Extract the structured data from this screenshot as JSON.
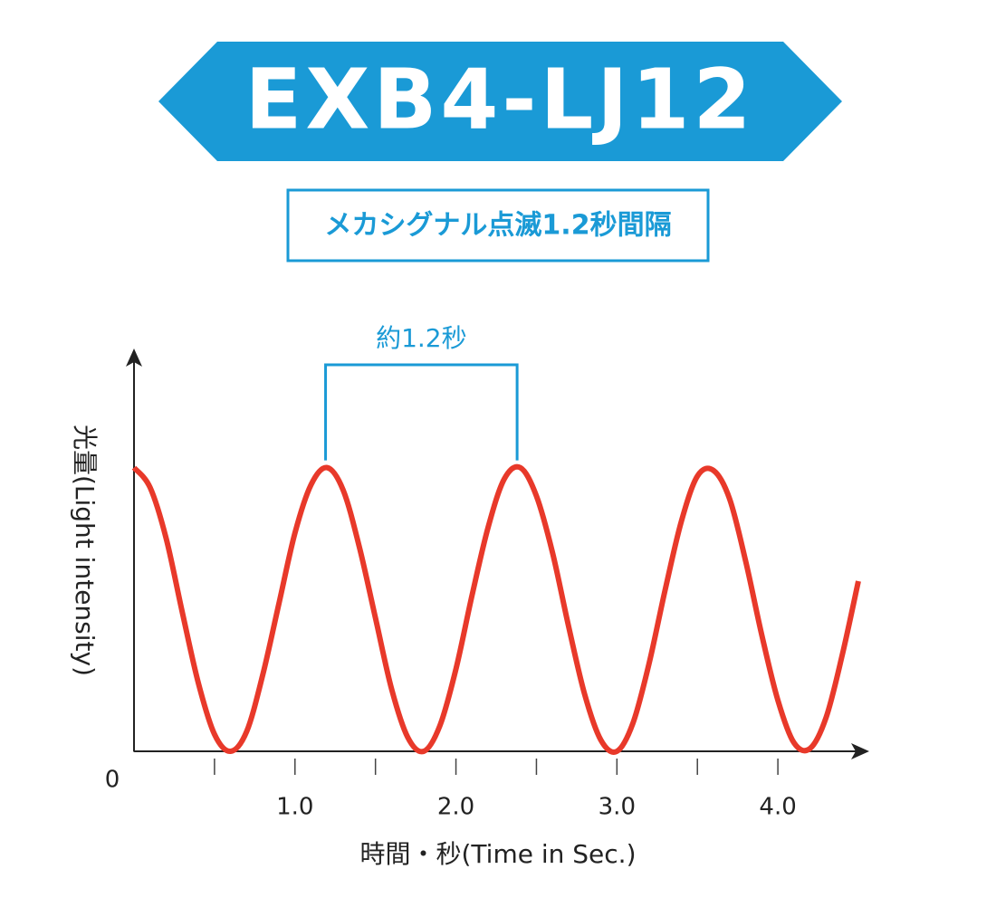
{
  "chart_data": {
    "type": "line",
    "title": "EXB4-LJ12",
    "subtitle": "メカシグナル点滅1.2秒間隔",
    "x_label": "時間・秒(Time in Sec.)",
    "y_label": "光量(Light intensity)",
    "annotation": {
      "text": "約1.2秒",
      "from": 1.19,
      "to": 2.38
    },
    "x": [
      0,
      0.1,
      0.2,
      0.3,
      0.4,
      0.5,
      0.6,
      0.7,
      0.8,
      0.9,
      1.0,
      1.1,
      1.2,
      1.3,
      1.4,
      1.5,
      1.6,
      1.7,
      1.8,
      1.9,
      2.0,
      2.1,
      2.2,
      2.3,
      2.4,
      2.5,
      2.6,
      2.7,
      2.8,
      2.9,
      3.0,
      3.1,
      3.2,
      3.3,
      3.4,
      3.5,
      3.6,
      3.7,
      3.8,
      3.9,
      4.0,
      4.1,
      4.2,
      4.3,
      4.4,
      4.5
    ],
    "series": [
      {
        "color": "#e8392a",
        "values": [
          1,
          0.93,
          0.75,
          0.49,
          0.24,
          0.06,
          0,
          0.07,
          0.27,
          0.52,
          0.77,
          0.94,
          1,
          0.92,
          0.72,
          0.47,
          0.22,
          0.05,
          0,
          0.09,
          0.29,
          0.55,
          0.79,
          0.96,
          1,
          0.9,
          0.7,
          0.44,
          0.2,
          0.04,
          0,
          0.1,
          0.31,
          0.57,
          0.81,
          0.97,
          0.99,
          0.89,
          0.67,
          0.41,
          0.18,
          0.03,
          0.01,
          0.12,
          0.34,
          0.6
        ]
      }
    ],
    "xlim": [
      0,
      4.5
    ],
    "ylim": [
      0,
      1.42
    ],
    "xticks": [
      {
        "value": 1,
        "label": "1.0"
      },
      {
        "value": 2,
        "label": "2.0"
      },
      {
        "value": 3,
        "label": "3.0"
      },
      {
        "value": 4,
        "label": "4.0"
      }
    ],
    "xminor_ticks": [
      0.5,
      1.5,
      2.5,
      3.5
    ],
    "yticks": [
      0
    ],
    "accent_color": "#1a9ad6"
  }
}
